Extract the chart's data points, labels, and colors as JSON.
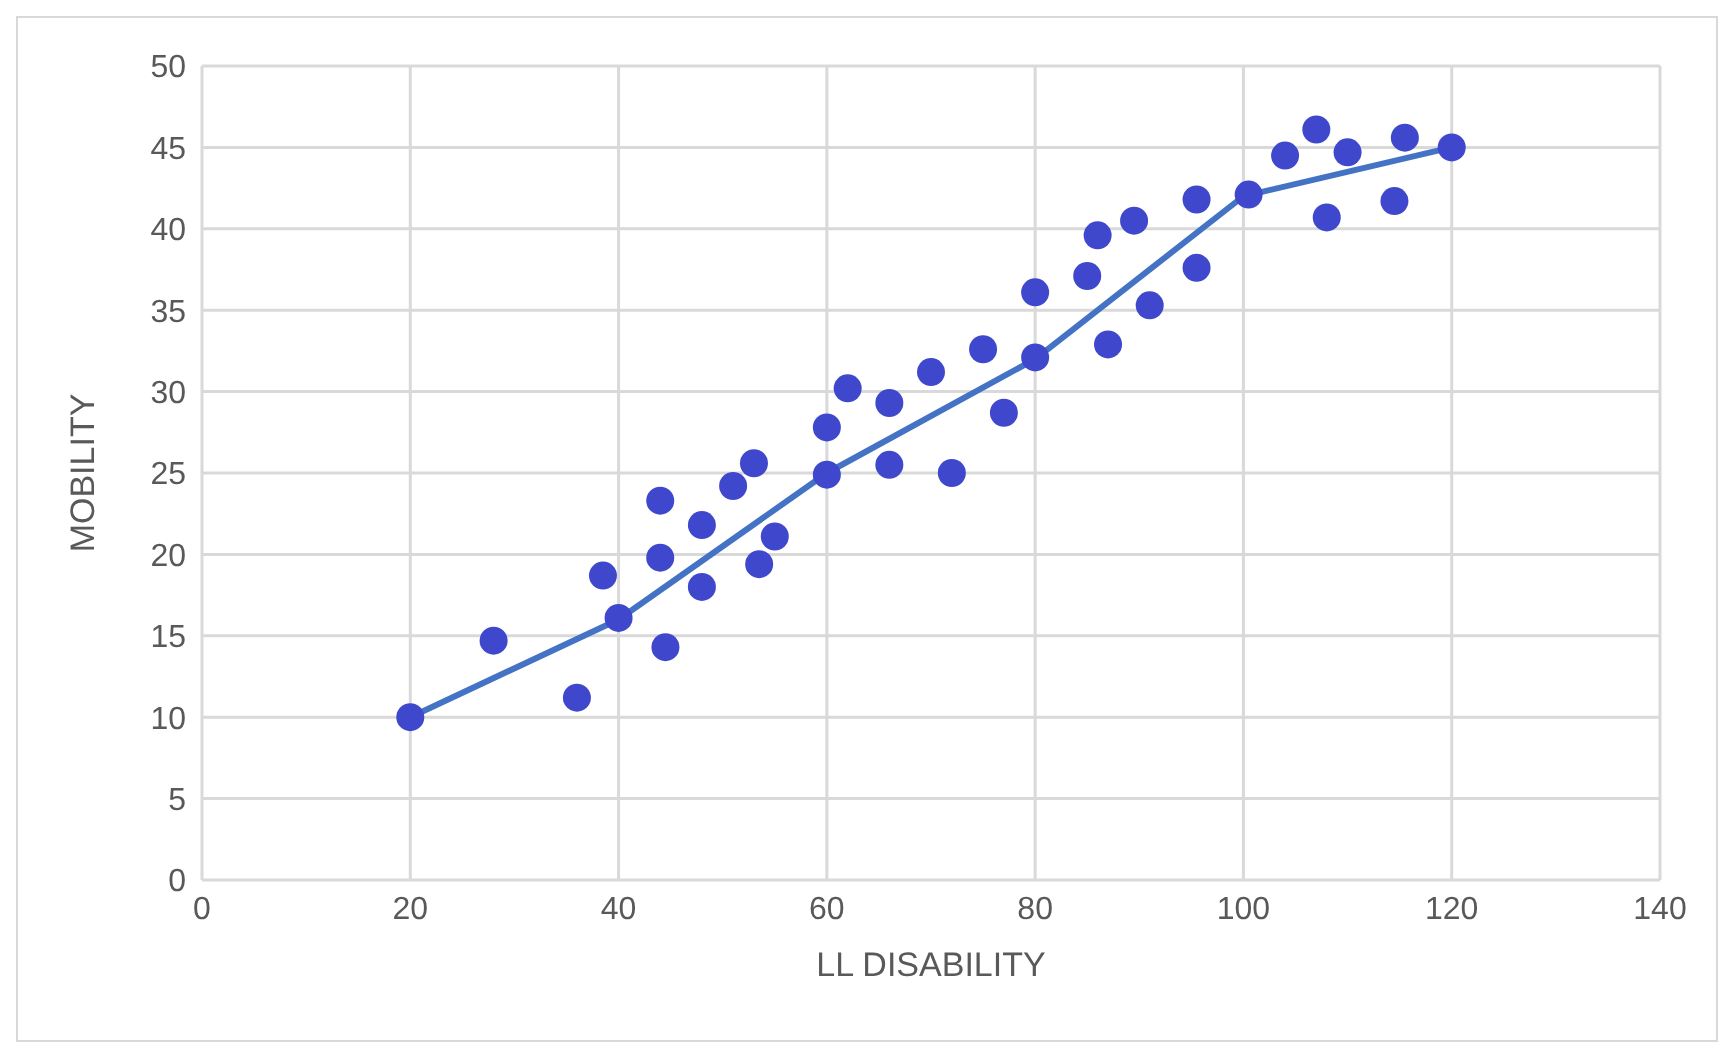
{
  "chart_data": {
    "type": "scatter",
    "xlabel": "LL DISABILITY",
    "ylabel": "MOBILITY",
    "xlim": [
      0,
      140
    ],
    "xticks": [
      0,
      20,
      40,
      60,
      80,
      100,
      120,
      140
    ],
    "ylim": [
      0,
      50
    ],
    "yticks": [
      0,
      5,
      10,
      15,
      20,
      25,
      30,
      35,
      40,
      45,
      50
    ],
    "grid": true,
    "series": [
      {
        "color": "#3f48cc",
        "marker": "circle",
        "x": [
          20,
          28,
          36,
          38.5,
          40,
          44,
          44,
          44.5,
          48,
          48,
          51,
          53,
          53.5,
          55,
          60,
          60,
          62,
          66,
          66,
          70,
          72,
          75,
          77,
          80,
          80,
          85,
          86,
          87,
          89.5,
          91,
          95.5,
          95.5,
          100,
          100.5,
          104,
          107,
          108,
          110,
          114.5,
          115.5,
          120
        ],
        "values": [
          10,
          14.7,
          11.2,
          18.7,
          16.1,
          23.3,
          19.8,
          14.3,
          21.8,
          18,
          24.2,
          25.6,
          19.4,
          21.1,
          27.8,
          24.9,
          30.2,
          29.3,
          25.5,
          31.2,
          25,
          32.6,
          28.7,
          36.1,
          32.1,
          37.1,
          39.6,
          32.9,
          40.5,
          35.3,
          41.8,
          37.6,
          null,
          42.1,
          44.5,
          46.1,
          40.7,
          44.7,
          41.7,
          45.6,
          45
        ]
      },
      {
        "type": "line",
        "color": "#4472c4",
        "marker": "none",
        "line_style": "solid",
        "x": [
          20,
          40,
          60,
          80,
          100,
          120
        ],
        "values": [
          10,
          16,
          25,
          32,
          42,
          45
        ]
      }
    ]
  }
}
